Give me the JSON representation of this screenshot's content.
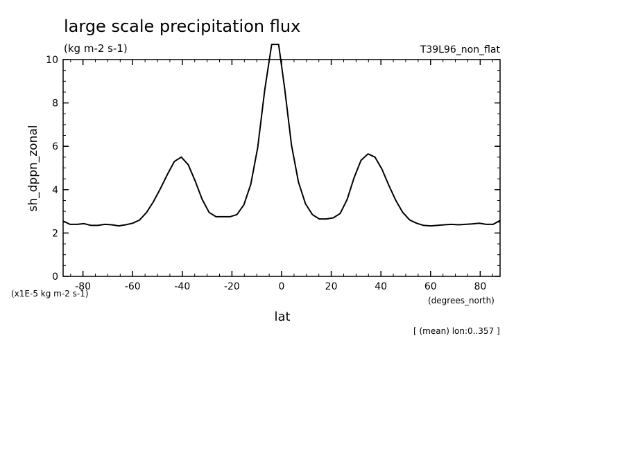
{
  "chart_data": {
    "type": "line",
    "title": "large scale precipitation flux",
    "subtitle": "(kg m-2 s-1)",
    "run_label": "T39L96_non_flat",
    "ylabel": "sh_dppn_zonal",
    "xlabel": "lat",
    "x_units": "(degrees_north)",
    "y_scale_note": "(x1E-5 kg m-2 s-1)",
    "footer": "[ (mean) lon:0..357 ]",
    "xlim": [
      -88,
      88
    ],
    "ylim": [
      0,
      10
    ],
    "x_ticks": [
      -80,
      -60,
      -40,
      -20,
      0,
      20,
      40,
      60,
      80
    ],
    "y_ticks": [
      0,
      2,
      4,
      6,
      8,
      10
    ],
    "x_tick_labels": [
      "-80",
      "-60",
      "-40",
      "-20",
      "0",
      "20",
      "40",
      "60",
      "80"
    ],
    "y_tick_labels": [
      "0",
      "2",
      "4",
      "6",
      "8",
      "10"
    ],
    "grid": false,
    "series": [
      {
        "x": [
          -88,
          -85.2,
          -82.4,
          -79.6,
          -76.8,
          -74,
          -71.2,
          -68.4,
          -65.6,
          -62.8,
          -60,
          -57.2,
          -54.4,
          -51.6,
          -48.8,
          -46,
          -43.2,
          -40.4,
          -37.6,
          -34.8,
          -32,
          -29.2,
          -26.4,
          -23.6,
          -20.8,
          -18,
          -15.2,
          -12.4,
          -9.6,
          -6.8,
          -4,
          -1.2,
          1.2,
          4,
          6.8,
          9.6,
          12.4,
          15.2,
          18,
          20.8,
          23.6,
          26.4,
          29.2,
          32,
          34.8,
          37.6,
          40.4,
          43.2,
          46,
          48.8,
          51.6,
          54.4,
          57.2,
          60,
          62.8,
          65.6,
          68.4,
          71.2,
          74,
          76.8,
          79.6,
          82.4,
          85.2,
          88
        ],
        "y": [
          2.55,
          2.4,
          2.4,
          2.43,
          2.35,
          2.35,
          2.4,
          2.38,
          2.33,
          2.38,
          2.45,
          2.6,
          2.95,
          3.45,
          4.05,
          4.7,
          5.3,
          5.5,
          5.15,
          4.4,
          3.55,
          2.95,
          2.75,
          2.75,
          2.75,
          2.85,
          3.3,
          4.25,
          5.95,
          8.6,
          10.7,
          10.7,
          8.7,
          6.05,
          4.35,
          3.35,
          2.85,
          2.65,
          2.65,
          2.7,
          2.9,
          3.55,
          4.55,
          5.35,
          5.65,
          5.5,
          4.95,
          4.2,
          3.5,
          2.95,
          2.6,
          2.45,
          2.35,
          2.33,
          2.35,
          2.38,
          2.4,
          2.38,
          2.4,
          2.42,
          2.45,
          2.4,
          2.4,
          2.58
        ]
      }
    ]
  }
}
